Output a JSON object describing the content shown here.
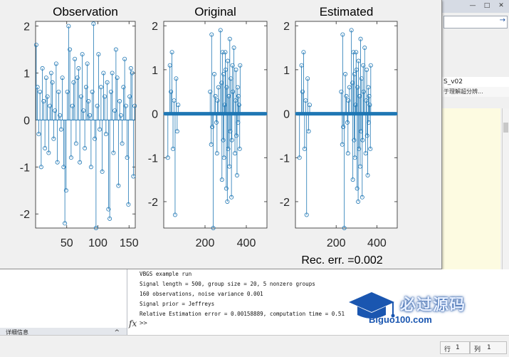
{
  "right_panel": {
    "window_buttons": [
      "—",
      "□",
      "✕"
    ],
    "folder_name": "S_v02",
    "folder_desc": "于理解超分辨...",
    "address_arrow": "→"
  },
  "figure": {
    "colors": {
      "stem": "#1f77b4",
      "background": "#f0f0f0",
      "axes_bg": "#ffffff"
    }
  },
  "chart_data": [
    {
      "type": "scatter",
      "title": "Observation",
      "xlim": [
        0,
        160
      ],
      "ylim": [
        -2.3,
        2.1
      ],
      "xticks": [
        50,
        100,
        150
      ],
      "yticks": [
        -2,
        -1,
        0,
        1,
        2
      ],
      "x": [
        1,
        3,
        5,
        7,
        9,
        11,
        13,
        15,
        17,
        19,
        21,
        23,
        25,
        27,
        29,
        31,
        33,
        35,
        37,
        39,
        41,
        43,
        45,
        47,
        49,
        51,
        53,
        55,
        57,
        59,
        61,
        63,
        65,
        67,
        69,
        71,
        73,
        75,
        77,
        79,
        81,
        83,
        85,
        87,
        89,
        91,
        93,
        95,
        97,
        99,
        101,
        103,
        105,
        107,
        109,
        111,
        113,
        115,
        117,
        119,
        121,
        123,
        125,
        127,
        129,
        131,
        133,
        135,
        137,
        139,
        141,
        143,
        145,
        147,
        149,
        151,
        153,
        155,
        157,
        159
      ],
      "values": [
        1.6,
        0.7,
        -0.3,
        0.6,
        -1.0,
        1.1,
        0.4,
        -0.6,
        0.9,
        0.5,
        -0.7,
        0.3,
        1.0,
        0.8,
        -0.4,
        0.2,
        1.2,
        -0.9,
        0.6,
        0.1,
        -0.2,
        0.9,
        -1.0,
        -2.2,
        -1.5,
        0.6,
        2.0,
        1.5,
        -0.8,
        0.3,
        0.8,
        1.3,
        -0.5,
        0.9,
        1.1,
        -0.9,
        0.5,
        1.4,
        0.2,
        -0.6,
        0.7,
        1.2,
        0.4,
        0.1,
        -1.0,
        0.6,
        2.05,
        -0.4,
        -2.3,
        0.3,
        1.4,
        -0.2,
        0.7,
        -1.1,
        1.0,
        0.5,
        -0.3,
        0.8,
        -1.9,
        -2.1,
        0.6,
        1.0,
        -0.7,
        0.2,
        1.5,
        0.9,
        -1.4,
        0.4,
        0.1,
        -0.5,
        0.7,
        1.3,
        0.3,
        -0.8,
        -1.8,
        0.5,
        1.1,
        1.0,
        -1.2,
        0.3
      ]
    },
    {
      "type": "scatter",
      "title": "Original",
      "xlim": [
        0,
        500
      ],
      "ylim": [
        -2.6,
        2.1
      ],
      "xticks": [
        200,
        400
      ],
      "yticks": [
        -2,
        -1,
        0,
        1,
        2
      ],
      "x": [
        20,
        30,
        35,
        40,
        45,
        50,
        55,
        60,
        65,
        70,
        225,
        230,
        232,
        235,
        240,
        245,
        250,
        255,
        258,
        260,
        265,
        275,
        280,
        282,
        285,
        288,
        290,
        292,
        295,
        298,
        300,
        303,
        305,
        308,
        310,
        312,
        315,
        318,
        320,
        322,
        325,
        328,
        330,
        333,
        335,
        340,
        345,
        348,
        350,
        352,
        355,
        358,
        360,
        362,
        365,
        368,
        370
      ],
      "values": [
        -1.0,
        1.1,
        0.5,
        1.4,
        -0.8,
        0.3,
        -2.3,
        0.8,
        -0.4,
        0.2,
        0.5,
        -0.7,
        1.8,
        -0.3,
        -2.6,
        0.9,
        0.4,
        -0.2,
        -0.9,
        0.3,
        0.6,
        1.9,
        0.7,
        -1.5,
        1.4,
        -0.6,
        0.9,
        -1.0,
        0.2,
        1.4,
        1.0,
        -1.7,
        0.6,
        -2.0,
        1.2,
        -0.8,
        0.4,
        -1.2,
        1.7,
        -0.4,
        0.8,
        -1.9,
        -0.6,
        1.1,
        0.5,
        1.5,
        -0.9,
        0.3,
        1.0,
        -0.5,
        -1.4,
        0.6,
        -0.2,
        0.4,
        0.2,
        -0.8,
        1.1
      ]
    },
    {
      "type": "scatter",
      "title": "Estimated",
      "xlim": [
        0,
        500
      ],
      "ylim": [
        -2.6,
        2.1
      ],
      "xticks": [
        200,
        400
      ],
      "yticks": [
        -2,
        -1,
        0,
        1,
        2
      ],
      "x": [
        20,
        30,
        35,
        40,
        45,
        50,
        55,
        60,
        65,
        70,
        225,
        230,
        232,
        235,
        240,
        245,
        250,
        255,
        258,
        260,
        265,
        275,
        280,
        282,
        285,
        288,
        290,
        292,
        295,
        298,
        300,
        303,
        305,
        308,
        310,
        312,
        315,
        318,
        320,
        322,
        325,
        328,
        330,
        333,
        335,
        340,
        345,
        348,
        350,
        352,
        355,
        358,
        360,
        362,
        365,
        368,
        370
      ],
      "values": [
        -1.0,
        1.1,
        0.5,
        1.4,
        -0.8,
        0.3,
        -2.3,
        0.8,
        -0.4,
        0.2,
        0.5,
        -0.7,
        1.8,
        -0.3,
        -2.6,
        0.9,
        0.4,
        -0.2,
        -0.9,
        0.3,
        0.6,
        1.9,
        0.7,
        -1.5,
        1.4,
        -0.6,
        0.9,
        -1.0,
        0.2,
        1.4,
        1.0,
        -1.7,
        0.6,
        -2.0,
        1.2,
        -0.8,
        0.4,
        -1.2,
        1.7,
        -0.4,
        0.8,
        -1.9,
        -0.6,
        1.1,
        0.5,
        1.5,
        -0.9,
        0.3,
        1.0,
        -0.5,
        -1.4,
        0.6,
        -0.2,
        0.4,
        0.2,
        -0.8,
        1.1
      ],
      "annotation": "Rec. err. =0.002"
    }
  ],
  "command_window": {
    "lines": [
      "VBGS example run",
      "Signal length = 500, group size = 20, 5 nonzero groups",
      "160 observations, noise variance 0.001",
      "Signal prior = Jeffreys",
      "Relative Estimation error = 0.00158889, computation time = 0.51"
    ],
    "fx_symbol": "fx",
    "prompt": ">>"
  },
  "workspace": {
    "label": "详细信息",
    "caret": "^"
  },
  "logo": {
    "main": "必过源码",
    "sub": "Biguo100.com"
  },
  "status_bar": {
    "row_label": "行",
    "row_value": "1",
    "col_label": "列",
    "col_value": "1"
  }
}
